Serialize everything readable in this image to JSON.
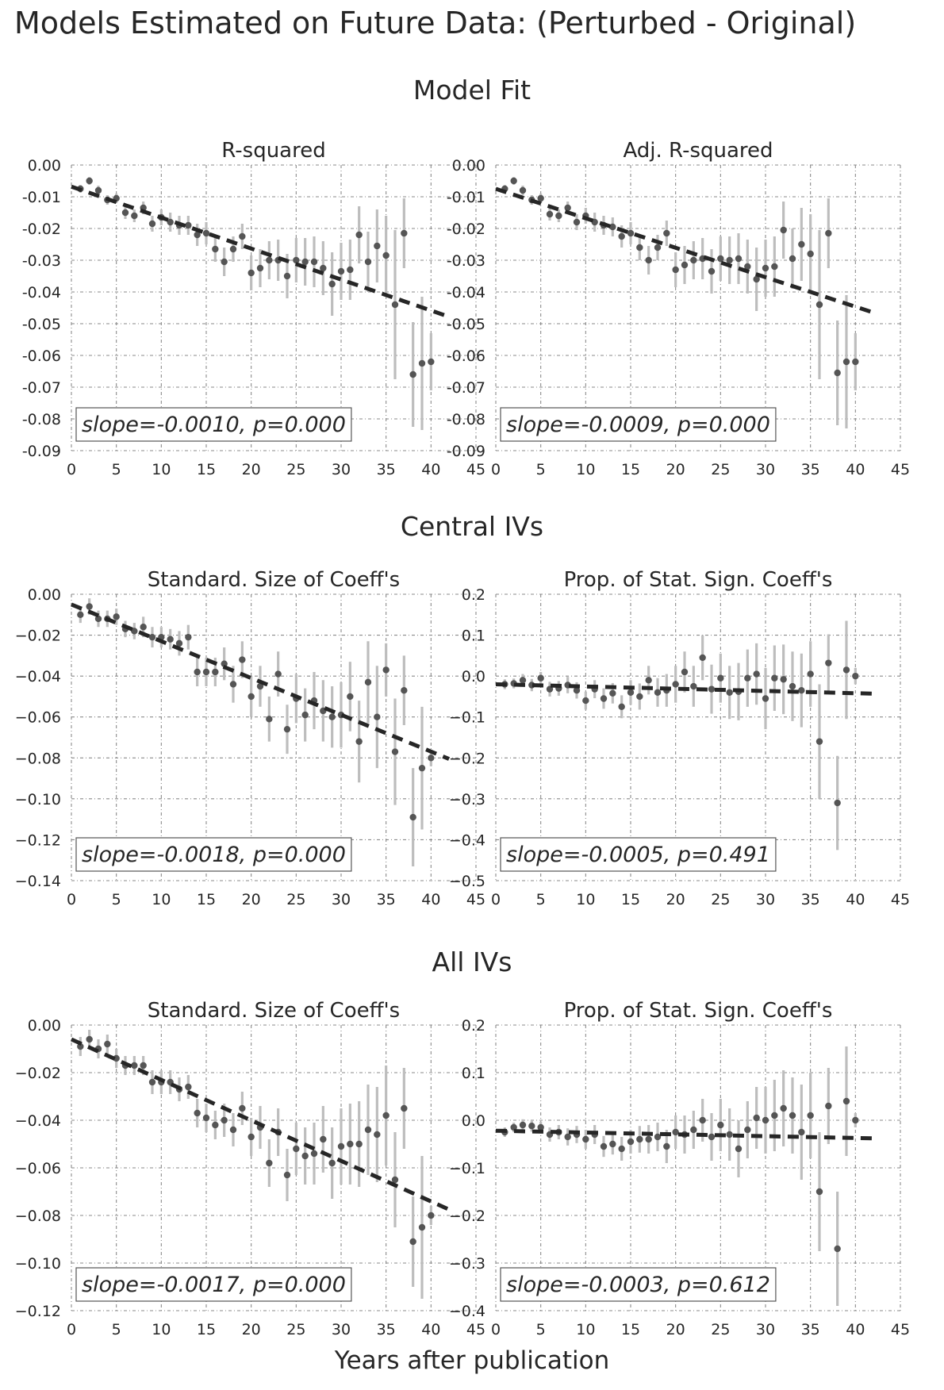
{
  "figure": {
    "title": "Models Estimated on Future Data: (Perturbed - Original)",
    "xlabel": "Years after publication",
    "sections": [
      "Model Fit",
      "Central IVs",
      "All IVs"
    ]
  },
  "colors": {
    "points": "#555555",
    "errorbars": "#bdbdbd",
    "trend": "#262626",
    "grid": "#8a8a8a",
    "text": "#262626"
  },
  "chart_data": [
    {
      "type": "scatter",
      "title": "R-squared",
      "annotation": "slope=-0.0010, p=0.000",
      "xlim": [
        0,
        45
      ],
      "ylim": [
        -0.09,
        0.0
      ],
      "xticks": [
        0,
        5,
        10,
        15,
        20,
        25,
        30,
        35,
        40,
        45
      ],
      "yticks": [
        0.0,
        -0.01,
        -0.02,
        -0.03,
        -0.04,
        -0.05,
        -0.06,
        -0.07,
        -0.08,
        -0.09
      ],
      "ytick_labels": [
        "0.00",
        "-0.01",
        "-0.02",
        "-0.03",
        "-0.04",
        "-0.05",
        "-0.06",
        "-0.07",
        "-0.08",
        "-0.09"
      ],
      "grid": true,
      "x": [
        1,
        2,
        3,
        4,
        5,
        6,
        7,
        8,
        9,
        10,
        11,
        12,
        13,
        14,
        15,
        16,
        17,
        18,
        19,
        20,
        21,
        22,
        23,
        24,
        25,
        26,
        27,
        28,
        29,
        30,
        31,
        32,
        33,
        34,
        35,
        36,
        37,
        38,
        39,
        40
      ],
      "y": [
        -0.0075,
        -0.005,
        -0.008,
        -0.011,
        -0.0105,
        -0.015,
        -0.016,
        -0.0135,
        -0.0185,
        -0.0165,
        -0.018,
        -0.019,
        -0.019,
        -0.022,
        -0.0215,
        -0.0265,
        -0.0305,
        -0.0265,
        -0.0225,
        -0.034,
        -0.0325,
        -0.03,
        -0.03,
        -0.035,
        -0.03,
        -0.0305,
        -0.0305,
        -0.0325,
        -0.0375,
        -0.0335,
        -0.033,
        -0.022,
        -0.0305,
        -0.0255,
        -0.0285,
        -0.044,
        -0.0215,
        -0.066,
        -0.0625,
        -0.062
      ],
      "err": [
        0.0012,
        0.0012,
        0.0015,
        0.0015,
        0.0015,
        0.002,
        0.002,
        0.002,
        0.0025,
        0.0025,
        0.003,
        0.003,
        0.003,
        0.0035,
        0.0035,
        0.004,
        0.0045,
        0.004,
        0.004,
        0.0055,
        0.006,
        0.006,
        0.0065,
        0.007,
        0.007,
        0.0075,
        0.008,
        0.0085,
        0.01,
        0.009,
        0.0095,
        0.009,
        0.0095,
        0.0115,
        0.0125,
        0.0235,
        0.011,
        0.0165,
        0.021,
        0.009
      ],
      "trend": {
        "x": [
          0,
          42
        ],
        "y": [
          -0.0068,
          -0.0478
        ]
      }
    },
    {
      "type": "scatter",
      "title": "Adj. R-squared",
      "annotation": "slope=-0.0009, p=0.000",
      "xlim": [
        0,
        45
      ],
      "ylim": [
        -0.09,
        0.0
      ],
      "xticks": [
        0,
        5,
        10,
        15,
        20,
        25,
        30,
        35,
        40,
        45
      ],
      "yticks": [
        0.0,
        -0.01,
        -0.02,
        -0.03,
        -0.04,
        -0.05,
        -0.06,
        -0.07,
        -0.08,
        -0.09
      ],
      "ytick_labels": [
        "0.00",
        "-0.01",
        "-0.02",
        "-0.03",
        "-0.04",
        "-0.05",
        "-0.06",
        "-0.07",
        "-0.08",
        "-0.09"
      ],
      "grid": true,
      "x": [
        1,
        2,
        3,
        4,
        5,
        6,
        7,
        8,
        9,
        10,
        11,
        12,
        13,
        14,
        15,
        16,
        17,
        18,
        19,
        20,
        21,
        22,
        23,
        24,
        25,
        26,
        27,
        28,
        29,
        30,
        31,
        32,
        33,
        34,
        35,
        36,
        37,
        38,
        39,
        40
      ],
      "y": [
        -0.0075,
        -0.005,
        -0.008,
        -0.011,
        -0.0105,
        -0.0155,
        -0.016,
        -0.0135,
        -0.018,
        -0.016,
        -0.018,
        -0.019,
        -0.0195,
        -0.0225,
        -0.0215,
        -0.026,
        -0.03,
        -0.026,
        -0.0215,
        -0.033,
        -0.0315,
        -0.03,
        -0.0295,
        -0.0335,
        -0.0295,
        -0.03,
        -0.0295,
        -0.032,
        -0.036,
        -0.0325,
        -0.032,
        -0.0205,
        -0.0295,
        -0.025,
        -0.028,
        -0.044,
        -0.0215,
        -0.0655,
        -0.062,
        -0.062
      ],
      "err": [
        0.0012,
        0.0012,
        0.0015,
        0.0015,
        0.0015,
        0.002,
        0.002,
        0.002,
        0.0025,
        0.0025,
        0.003,
        0.003,
        0.003,
        0.0035,
        0.0035,
        0.004,
        0.0045,
        0.004,
        0.004,
        0.0055,
        0.006,
        0.006,
        0.0065,
        0.007,
        0.007,
        0.0075,
        0.008,
        0.0085,
        0.01,
        0.009,
        0.0095,
        0.009,
        0.0095,
        0.0115,
        0.0125,
        0.0235,
        0.011,
        0.0165,
        0.021,
        0.009
      ],
      "trend": {
        "x": [
          0,
          42
        ],
        "y": [
          -0.0075,
          -0.0465
        ]
      }
    },
    {
      "type": "scatter",
      "title": "Standard. Size of Coeff's",
      "annotation": "slope=-0.0018, p=0.000",
      "xlim": [
        0,
        45
      ],
      "ylim": [
        -0.14,
        0.0
      ],
      "xticks": [
        0,
        5,
        10,
        15,
        20,
        25,
        30,
        35,
        40,
        45
      ],
      "yticks": [
        0.0,
        -0.02,
        -0.04,
        -0.06,
        -0.08,
        -0.1,
        -0.12,
        -0.14
      ],
      "ytick_labels": [
        "0.00",
        "−0.02",
        "−0.04",
        "−0.06",
        "−0.08",
        "−0.10",
        "−0.12",
        "−0.14"
      ],
      "grid": true,
      "x": [
        1,
        2,
        3,
        4,
        5,
        6,
        7,
        8,
        9,
        10,
        11,
        12,
        13,
        14,
        15,
        16,
        17,
        18,
        19,
        20,
        21,
        22,
        23,
        24,
        25,
        26,
        27,
        28,
        29,
        30,
        31,
        32,
        33,
        34,
        35,
        36,
        37,
        38,
        39,
        40
      ],
      "y": [
        -0.01,
        -0.006,
        -0.012,
        -0.012,
        -0.011,
        -0.017,
        -0.018,
        -0.016,
        -0.021,
        -0.021,
        -0.022,
        -0.024,
        -0.021,
        -0.038,
        -0.038,
        -0.038,
        -0.034,
        -0.044,
        -0.032,
        -0.05,
        -0.045,
        -0.061,
        -0.039,
        -0.066,
        -0.051,
        -0.059,
        -0.052,
        -0.057,
        -0.06,
        -0.059,
        -0.05,
        -0.072,
        -0.043,
        -0.06,
        -0.037,
        -0.077,
        -0.047,
        -0.109,
        -0.085,
        -0.08
      ],
      "err": [
        0.004,
        0.004,
        0.004,
        0.004,
        0.004,
        0.004,
        0.004,
        0.005,
        0.005,
        0.005,
        0.005,
        0.006,
        0.006,
        0.007,
        0.007,
        0.007,
        0.008,
        0.009,
        0.009,
        0.01,
        0.01,
        0.011,
        0.011,
        0.012,
        0.012,
        0.013,
        0.014,
        0.015,
        0.015,
        0.016,
        0.017,
        0.02,
        0.02,
        0.025,
        0.013,
        0.026,
        0.017,
        0.024,
        0.03,
        0.004
      ],
      "trend": {
        "x": [
          0,
          42
        ],
        "y": [
          -0.005,
          -0.0805
        ]
      }
    },
    {
      "type": "scatter",
      "title": "Prop. of Stat. Sign. Coeff's",
      "annotation": "slope=-0.0005, p=0.491",
      "xlim": [
        0,
        45
      ],
      "ylim": [
        -0.5,
        0.2
      ],
      "xticks": [
        0,
        5,
        10,
        15,
        20,
        25,
        30,
        35,
        40,
        45
      ],
      "yticks": [
        0.2,
        0.1,
        0.0,
        -0.1,
        -0.2,
        -0.3,
        -0.4,
        -0.5
      ],
      "ytick_labels": [
        "0.2",
        "0.1",
        "0.0",
        "−0.1",
        "−0.2",
        "−0.3",
        "−0.4",
        "−0.5"
      ],
      "grid": true,
      "x": [
        1,
        2,
        3,
        4,
        5,
        6,
        7,
        8,
        9,
        10,
        11,
        12,
        13,
        14,
        15,
        16,
        17,
        18,
        19,
        20,
        21,
        22,
        23,
        24,
        25,
        26,
        27,
        28,
        29,
        30,
        31,
        32,
        33,
        34,
        35,
        36,
        37,
        38,
        39,
        40
      ],
      "y": [
        -0.02,
        -0.018,
        -0.01,
        -0.022,
        -0.005,
        -0.032,
        -0.03,
        -0.022,
        -0.035,
        -0.06,
        -0.032,
        -0.055,
        -0.042,
        -0.075,
        -0.04,
        -0.05,
        -0.01,
        -0.04,
        -0.035,
        -0.02,
        0.01,
        -0.025,
        0.045,
        -0.032,
        -0.005,
        -0.04,
        -0.038,
        -0.005,
        0.005,
        -0.055,
        -0.005,
        -0.008,
        -0.025,
        -0.035,
        0.005,
        -0.16,
        0.032,
        -0.31,
        0.015,
        0.0
      ],
      "err": [
        0.012,
        0.012,
        0.015,
        0.015,
        0.015,
        0.018,
        0.018,
        0.02,
        0.02,
        0.022,
        0.022,
        0.025,
        0.025,
        0.028,
        0.03,
        0.032,
        0.035,
        0.035,
        0.04,
        0.045,
        0.05,
        0.05,
        0.055,
        0.06,
        0.06,
        0.065,
        0.07,
        0.07,
        0.075,
        0.075,
        0.08,
        0.085,
        0.085,
        0.09,
        0.08,
        0.14,
        0.07,
        0.115,
        0.12,
        0.02
      ],
      "trend": {
        "x": [
          0,
          42
        ],
        "y": [
          -0.02,
          -0.043
        ]
      }
    },
    {
      "type": "scatter",
      "title": "Standard. Size of Coeff's",
      "annotation": "slope=-0.0017, p=0.000",
      "xlim": [
        0,
        45
      ],
      "ylim": [
        -0.12,
        0.0
      ],
      "xticks": [
        0,
        5,
        10,
        15,
        20,
        25,
        30,
        35,
        40,
        45
      ],
      "yticks": [
        0.0,
        -0.02,
        -0.04,
        -0.06,
        -0.08,
        -0.1,
        -0.12
      ],
      "ytick_labels": [
        "0.00",
        "−0.02",
        "−0.04",
        "−0.06",
        "−0.08",
        "−0.10",
        "−0.12"
      ],
      "grid": true,
      "x": [
        1,
        2,
        3,
        4,
        5,
        6,
        7,
        8,
        9,
        10,
        11,
        12,
        13,
        14,
        15,
        16,
        17,
        18,
        19,
        20,
        21,
        22,
        23,
        24,
        25,
        26,
        27,
        28,
        29,
        30,
        31,
        32,
        33,
        34,
        35,
        36,
        37,
        38,
        39,
        40
      ],
      "y": [
        -0.009,
        -0.006,
        -0.01,
        -0.008,
        -0.014,
        -0.017,
        -0.017,
        -0.017,
        -0.024,
        -0.024,
        -0.024,
        -0.027,
        -0.026,
        -0.037,
        -0.039,
        -0.042,
        -0.04,
        -0.044,
        -0.035,
        -0.047,
        -0.043,
        -0.058,
        -0.045,
        -0.063,
        -0.052,
        -0.055,
        -0.054,
        -0.048,
        -0.058,
        -0.051,
        -0.05,
        -0.05,
        -0.044,
        -0.046,
        -0.038,
        -0.065,
        -0.035,
        -0.091,
        -0.085,
        -0.08
      ],
      "err": [
        0.004,
        0.004,
        0.004,
        0.004,
        0.004,
        0.004,
        0.004,
        0.004,
        0.005,
        0.005,
        0.005,
        0.005,
        0.005,
        0.006,
        0.006,
        0.006,
        0.007,
        0.007,
        0.007,
        0.008,
        0.009,
        0.01,
        0.01,
        0.011,
        0.011,
        0.012,
        0.013,
        0.014,
        0.015,
        0.016,
        0.017,
        0.018,
        0.019,
        0.02,
        0.021,
        0.02,
        0.017,
        0.019,
        0.03,
        0.004
      ],
      "trend": {
        "x": [
          0,
          42
        ],
        "y": [
          -0.006,
          -0.0775
        ]
      }
    },
    {
      "type": "scatter",
      "title": "Prop. of Stat. Sign. Coeff's",
      "annotation": "slope=-0.0003, p=0.612",
      "xlim": [
        0,
        45
      ],
      "ylim": [
        -0.4,
        0.2
      ],
      "xticks": [
        0,
        5,
        10,
        15,
        20,
        25,
        30,
        35,
        40,
        45
      ],
      "yticks": [
        0.2,
        0.1,
        0.0,
        -0.1,
        -0.2,
        -0.3,
        -0.4
      ],
      "ytick_labels": [
        "0.2",
        "0.1",
        "0.0",
        "−0.1",
        "−0.2",
        "−0.3",
        "−0.4"
      ],
      "grid": true,
      "x": [
        1,
        2,
        3,
        4,
        5,
        6,
        7,
        8,
        9,
        10,
        11,
        12,
        13,
        14,
        15,
        16,
        17,
        18,
        19,
        20,
        21,
        22,
        23,
        24,
        25,
        26,
        27,
        28,
        29,
        30,
        31,
        32,
        33,
        34,
        35,
        36,
        37,
        38,
        39,
        40
      ],
      "y": [
        -0.025,
        -0.015,
        -0.01,
        -0.012,
        -0.015,
        -0.03,
        -0.025,
        -0.035,
        -0.03,
        -0.04,
        -0.03,
        -0.055,
        -0.05,
        -0.06,
        -0.045,
        -0.04,
        -0.04,
        -0.035,
        -0.055,
        -0.025,
        -0.03,
        -0.02,
        0.0,
        -0.035,
        -0.01,
        -0.03,
        -0.06,
        -0.02,
        0.005,
        0.0,
        0.01,
        0.025,
        0.01,
        -0.025,
        0.01,
        -0.15,
        0.03,
        -0.27,
        0.04,
        0.0
      ],
      "err": [
        0.01,
        0.01,
        0.012,
        0.012,
        0.012,
        0.015,
        0.015,
        0.018,
        0.018,
        0.02,
        0.02,
        0.022,
        0.022,
        0.025,
        0.025,
        0.028,
        0.03,
        0.03,
        0.035,
        0.035,
        0.04,
        0.04,
        0.045,
        0.05,
        0.055,
        0.055,
        0.06,
        0.06,
        0.065,
        0.07,
        0.075,
        0.08,
        0.08,
        0.1,
        0.09,
        0.125,
        0.08,
        0.12,
        0.115,
        0.015
      ],
      "trend": {
        "x": [
          0,
          42
        ],
        "y": [
          -0.022,
          -0.038
        ]
      }
    }
  ]
}
